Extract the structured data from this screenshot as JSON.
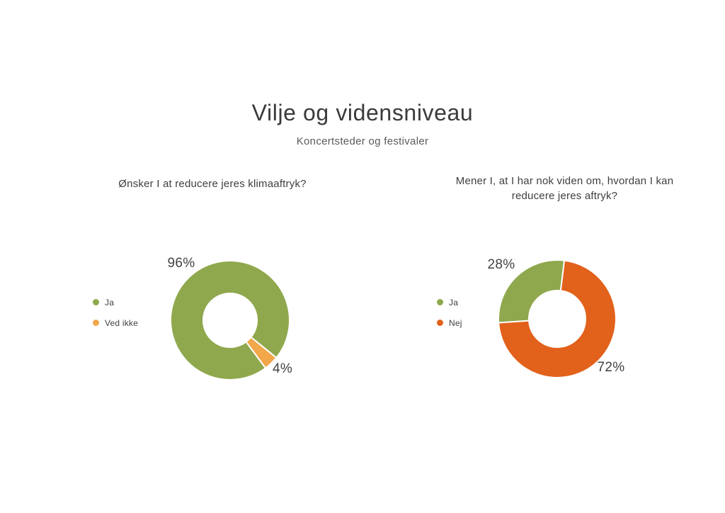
{
  "page": {
    "title": "Vilje og vidensniveau",
    "subtitle": "Koncertsteder og festivaler",
    "background_color": "#ffffff",
    "text_color": "#3f3f3e"
  },
  "chart_data": [
    {
      "type": "pie",
      "donut": true,
      "title": "Ønsker I at reducere jeres klimaaftryk?",
      "labels": [
        "Ja",
        "Ved ikke"
      ],
      "values": [
        96,
        4
      ],
      "unit": "%",
      "data_labels": [
        "96%",
        "4%"
      ],
      "colors": [
        "#8FA84D",
        "#F2A74B"
      ],
      "stroke_color": "#ffffff",
      "legend_position": "left",
      "rotation_deg": 143.4
    },
    {
      "type": "pie",
      "donut": true,
      "title": "Mener I, at I har nok viden om, hvordan I kan reducere jeres aftryk?",
      "labels": [
        "Ja",
        "Nej"
      ],
      "values": [
        28,
        72
      ],
      "unit": "%",
      "data_labels": [
        "28%",
        "72%"
      ],
      "colors": [
        "#8FA84D",
        "#E2611B"
      ],
      "stroke_color": "#ffffff",
      "legend_position": "left",
      "rotation_deg": 266.2
    }
  ]
}
